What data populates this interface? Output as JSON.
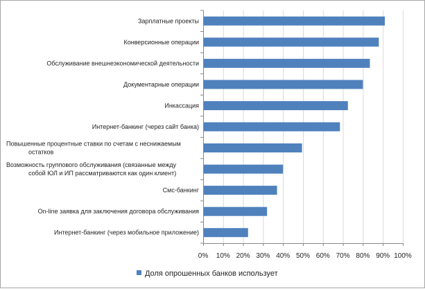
{
  "chart_data": {
    "type": "bar",
    "orientation": "horizontal",
    "categories": [
      "Интернет-банкинг (через мобильное приложение)",
      "On-line заявка для заключения договора обслуживания",
      "Смс-банкинг",
      "Возможность группового обслуживания (связанные между собой ЮЛ и ИП рассматриваются как один клиент)",
      "Повышенные процентные ставки по счетам с неснижаемым остатков",
      "Интернет-банкинг (через сайт банка)",
      "Инкассация",
      "Документарные операции",
      "Обслуживание внешнеэкономической деятельности",
      "Конверсионные операции",
      "Зарплатные проекты"
    ],
    "category_label_lines": [
      [
        "Интернет-банкинг (через мобильное приложение)"
      ],
      [
        "On-line заявка для заключения договора обслуживания"
      ],
      [
        "Смс-банкинг"
      ],
      [
        "Возможность группового обслуживания (связанные между",
        "собой ЮЛ и ИП рассматриваются как один клиент)"
      ],
      [
        "Повышенные процентные ставки по счетам с неснижаемым",
        "остатков"
      ],
      [
        "Интернет-банкинг (через сайт банка)"
      ],
      [
        "Инкассация"
      ],
      [
        "Документарные операции"
      ],
      [
        "Обслуживание внешнеэкономической деятельности"
      ],
      [
        "Конверсионные операции"
      ],
      [
        "Зарплатные проекты"
      ]
    ],
    "series": [
      {
        "name": "Доля опрошенных банков использует",
        "values": [
          0.225,
          0.32,
          0.37,
          0.4,
          0.495,
          0.685,
          0.725,
          0.8,
          0.835,
          0.88,
          0.91
        ],
        "color": "#4f81bd"
      }
    ],
    "xlim": [
      0,
      1
    ],
    "x_ticks": [
      0,
      0.1,
      0.2,
      0.3,
      0.4,
      0.5,
      0.6,
      0.7,
      0.8,
      0.9,
      1.0
    ],
    "x_tick_labels": [
      "0%",
      "10%",
      "20%",
      "30%",
      "40%",
      "50%",
      "60%",
      "70%",
      "80%",
      "90%",
      "100%"
    ],
    "grid": true,
    "legend_position": "bottom",
    "title": "",
    "xlabel": "",
    "ylabel": ""
  }
}
